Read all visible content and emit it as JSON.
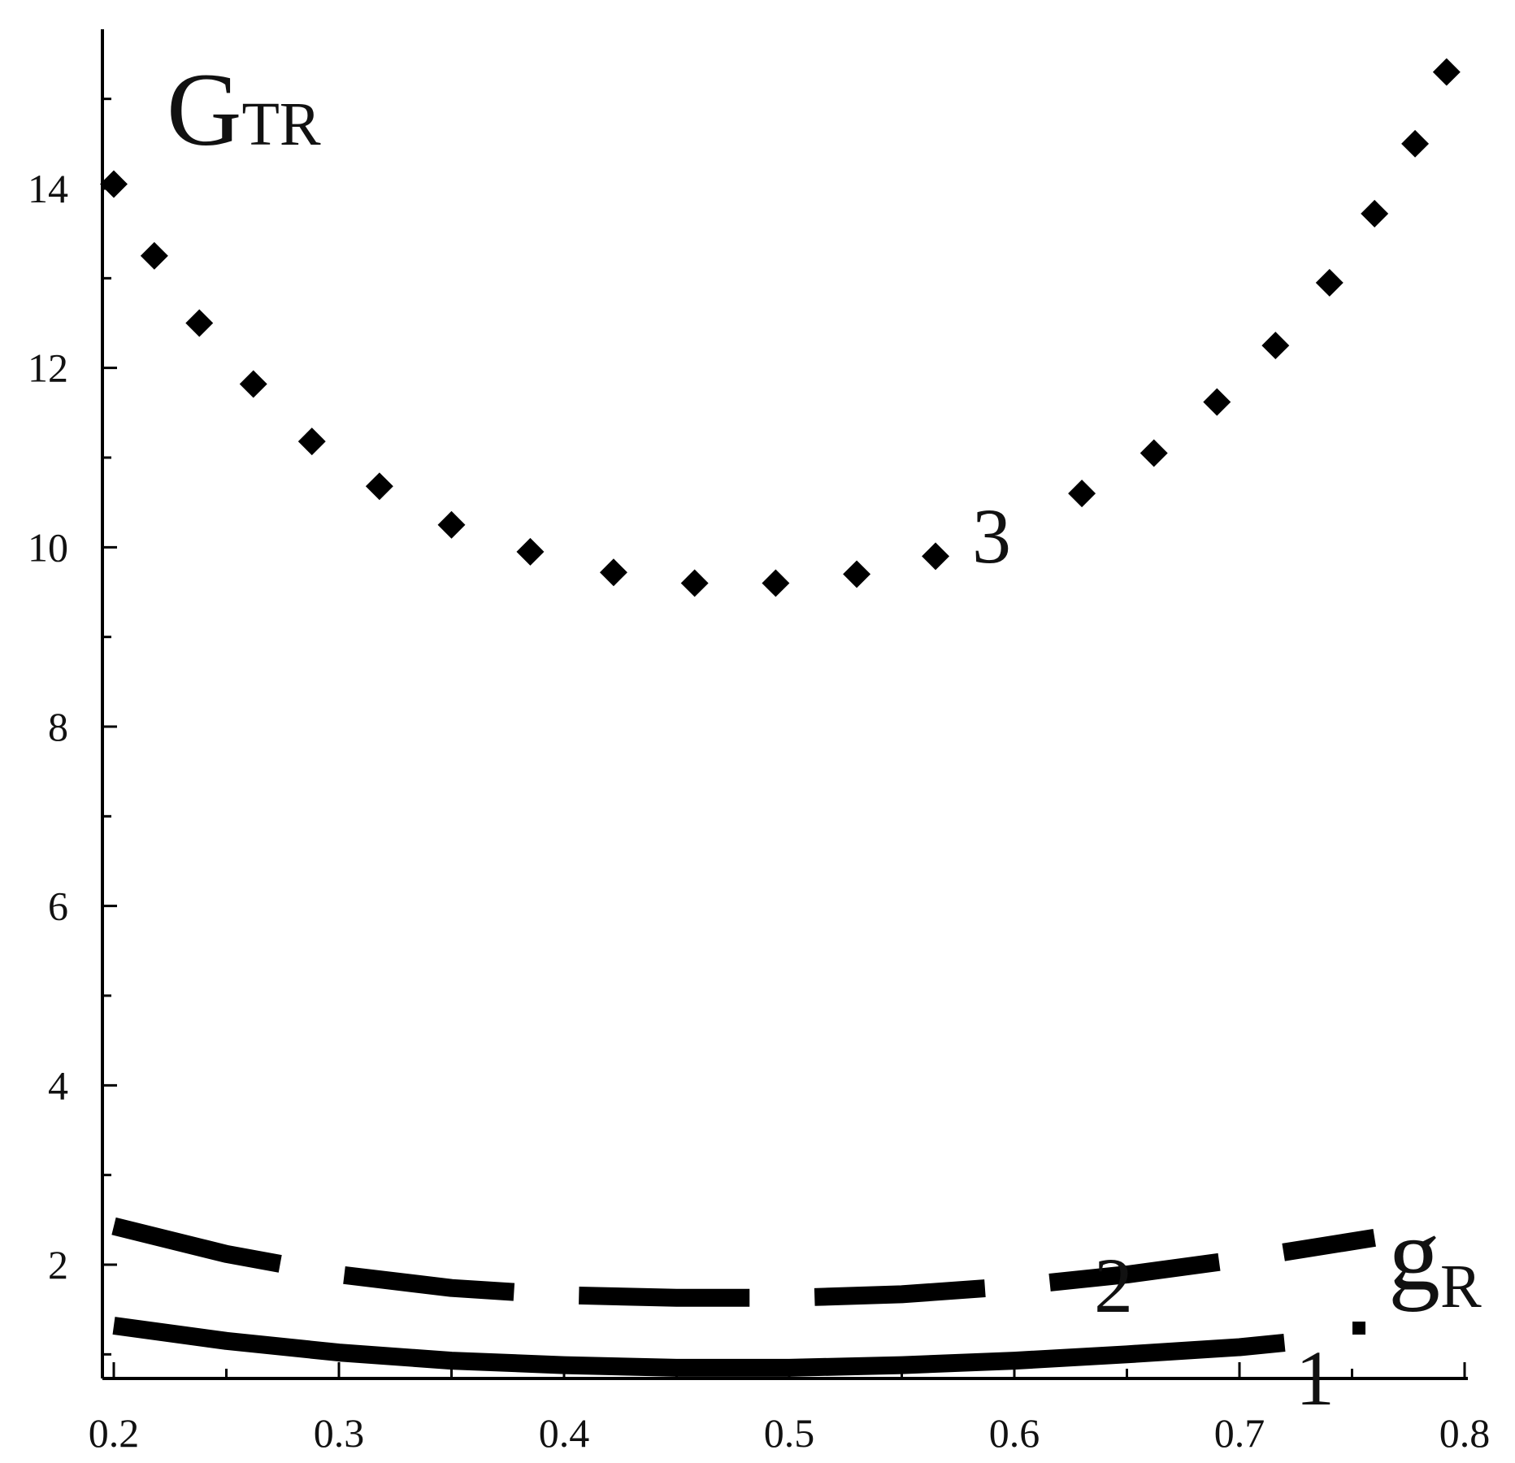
{
  "chart_data": {
    "type": "line",
    "ylabel": {
      "main": "G",
      "sub": "TR"
    },
    "xlabel": {
      "main": "g",
      "sub": "R"
    },
    "xlim": [
      0.2,
      0.8
    ],
    "ylim": [
      0.8,
      15.6
    ],
    "x_ticks": [
      "0.2",
      "0.3",
      "0.4",
      "0.5",
      "0.6",
      "0.7",
      "0.8"
    ],
    "y_ticks": [
      "2",
      "4",
      "6",
      "8",
      "10",
      "12",
      "14"
    ],
    "grid": false,
    "legend": "none",
    "series": [
      {
        "label": "1",
        "style": "solid",
        "color": "#000000",
        "x": [
          0.2,
          0.25,
          0.3,
          0.35,
          0.4,
          0.45,
          0.5,
          0.55,
          0.6,
          0.65,
          0.7,
          0.72
        ],
        "y": [
          1.32,
          1.15,
          1.02,
          0.93,
          0.88,
          0.85,
          0.85,
          0.88,
          0.93,
          1.0,
          1.08,
          1.13
        ]
      },
      {
        "label": "2",
        "style": "dashed",
        "color": "#000000",
        "x": [
          0.2,
          0.25,
          0.3,
          0.35,
          0.4,
          0.45,
          0.5,
          0.55,
          0.6,
          0.65,
          0.7,
          0.76
        ],
        "y": [
          2.43,
          2.12,
          1.89,
          1.74,
          1.66,
          1.63,
          1.63,
          1.67,
          1.76,
          1.89,
          2.06,
          2.3
        ]
      },
      {
        "label": "3",
        "style": "dotted",
        "color": "#000000",
        "x": [
          0.2,
          0.218,
          0.238,
          0.262,
          0.288,
          0.318,
          0.35,
          0.385,
          0.422,
          0.458,
          0.494,
          0.53,
          0.565,
          0.63,
          0.662,
          0.69,
          0.716,
          0.74,
          0.76,
          0.778,
          0.792
        ],
        "y": [
          14.05,
          13.25,
          12.5,
          11.82,
          11.18,
          10.68,
          10.25,
          9.95,
          9.72,
          9.6,
          9.6,
          9.7,
          9.9,
          10.6,
          11.05,
          11.62,
          12.25,
          12.95,
          13.72,
          14.5,
          15.3
        ]
      }
    ]
  }
}
